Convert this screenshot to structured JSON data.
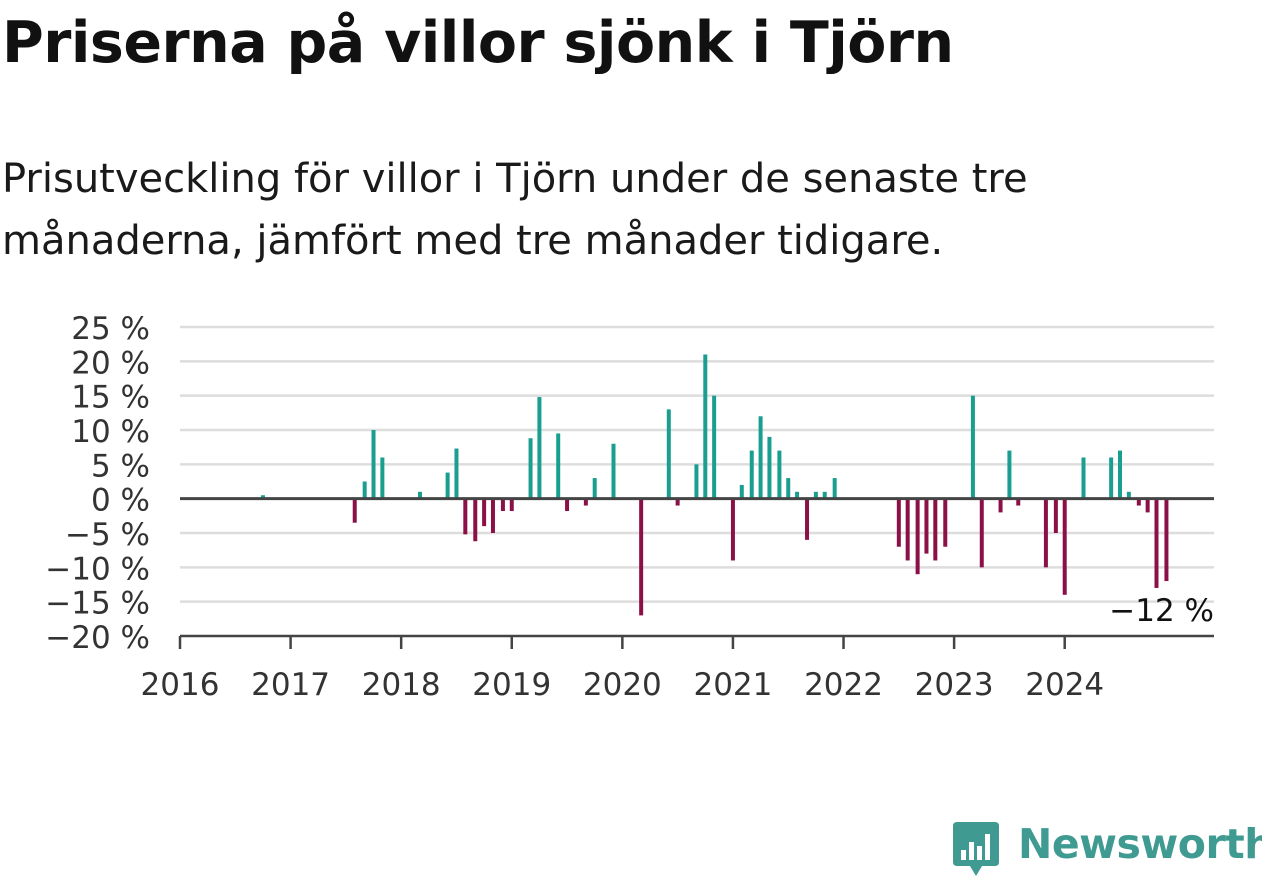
{
  "title": "Priserna på villor sjönk i Tjörn",
  "subtitle": "Prisutveckling för villor i Tjörn under de senaste tre månaderna, jämfört med tre månader tidigare.",
  "brand": {
    "name": "Newsworthy",
    "icon": "newsworthy-logo-icon"
  },
  "colors": {
    "positive": "#1a9e8f",
    "negative": "#8c1048",
    "grid": "#dddddd",
    "axis": "#444444",
    "brand": "#3f9b91"
  },
  "chart_data": {
    "type": "bar",
    "ylim": [
      -20,
      25
    ],
    "yticks": [
      25,
      20,
      15,
      10,
      5,
      0,
      -5,
      -10,
      -15,
      -20
    ],
    "ytick_labels": [
      "25 %",
      "20 %",
      "15 %",
      "10 %",
      "5 %",
      "0 %",
      "−5 %",
      "−10 %",
      "−15 %",
      "−20 %"
    ],
    "x_range": [
      2016.0,
      2025.35
    ],
    "xticks": [
      2016,
      2017,
      2018,
      2019,
      2020,
      2021,
      2022,
      2023,
      2024
    ],
    "xtick_labels": [
      "2016",
      "2017",
      "2018",
      "2019",
      "2020",
      "2021",
      "2022",
      "2023",
      "2024"
    ],
    "grid": true,
    "annotation": {
      "text": "−12 %",
      "x": 2024.92,
      "y": -12
    },
    "series": [
      {
        "x": [
          2016.75,
          2017.58,
          2017.67,
          2017.75,
          2017.83,
          2018.17,
          2018.42,
          2018.5,
          2018.58,
          2018.67,
          2018.75,
          2018.83,
          2018.92,
          2019.0,
          2019.17,
          2019.25,
          2019.42,
          2019.5,
          2019.67,
          2019.75,
          2019.92,
          2020.17,
          2020.42,
          2020.5,
          2020.67,
          2020.75,
          2020.83,
          2021.0,
          2021.08,
          2021.17,
          2021.25,
          2021.33,
          2021.42,
          2021.5,
          2021.58,
          2021.67,
          2021.75,
          2021.83,
          2021.92,
          2022.5,
          2022.58,
          2022.67,
          2022.75,
          2022.83,
          2022.92,
          2023.17,
          2023.25,
          2023.42,
          2023.5,
          2023.58,
          2023.83,
          2023.92,
          2024.0,
          2024.17,
          2024.42,
          2024.5,
          2024.58,
          2024.67,
          2024.75,
          2024.83,
          2024.92
        ],
        "values": [
          0.5,
          -3.5,
          2.5,
          10,
          6,
          1,
          3.8,
          7.3,
          -5.2,
          -6.2,
          -4,
          -5,
          -1.8,
          -1.8,
          8.8,
          14.8,
          9.5,
          -1.8,
          -1,
          3,
          8,
          -17,
          13,
          -1,
          5,
          21,
          15,
          -9,
          2,
          7,
          12,
          9,
          7,
          3,
          1,
          -6,
          1,
          1,
          3,
          -7,
          -9,
          -11,
          -8,
          -9,
          -7,
          15,
          -10,
          -2,
          7,
          -1,
          -10,
          -5,
          -14,
          6,
          6,
          7,
          1,
          -1,
          -2,
          -13,
          -12
        ]
      }
    ]
  }
}
